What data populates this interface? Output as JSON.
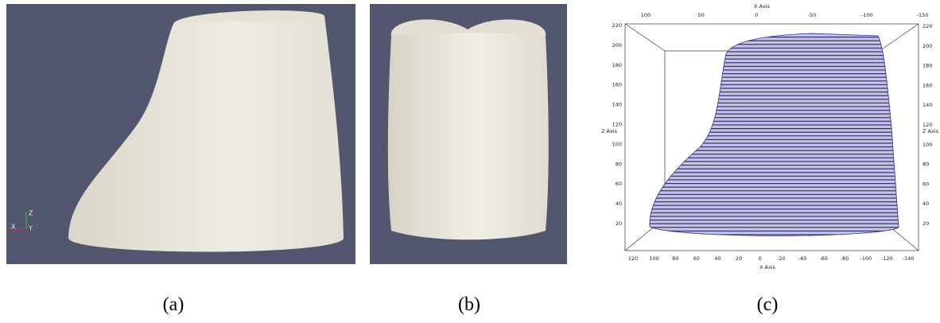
{
  "panels": [
    {
      "caption": "(a)",
      "axes_triad": [
        "Z",
        "X",
        "Y"
      ]
    },
    {
      "caption": "(b)"
    },
    {
      "caption": "(c)",
      "top_axis": {
        "title": "X Axis",
        "ticks": [
          "100",
          "50",
          "0",
          "-50",
          "-100",
          "-150"
        ]
      },
      "bottom_axis": {
        "title": "X Axis",
        "ticks": [
          "120",
          "100",
          "80",
          "60",
          "40",
          "20",
          "0",
          "-20",
          "-40",
          "-60",
          "-80",
          "-100",
          "-120",
          "-140"
        ]
      },
      "left_axis": {
        "title": "Z Axis",
        "ticks": [
          "220",
          "200",
          "180",
          "160",
          "140",
          "120",
          "100",
          "80",
          "60",
          "40",
          "20"
        ]
      },
      "right_axis": {
        "title": "Z Axis",
        "ticks": [
          "220",
          "200",
          "180",
          "160",
          "140",
          "120",
          "100",
          "80",
          "60",
          "40",
          "20"
        ]
      }
    }
  ]
}
